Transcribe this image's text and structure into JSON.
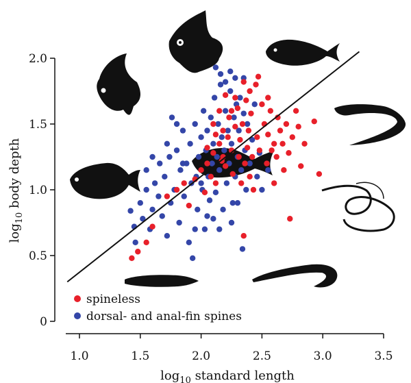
{
  "chart_data": {
    "type": "scatter",
    "xlabel": {
      "prefix": "log",
      "sub": "10",
      "rest": " standard length"
    },
    "ylabel": {
      "prefix": "log",
      "sub": "10",
      "rest": " body depth"
    },
    "xlim": [
      0.9,
      3.5
    ],
    "ylim": [
      0,
      2.0
    ],
    "xticks": [
      "1.0",
      "1.5",
      "2.0",
      "2.5",
      "3.0",
      "3.5"
    ],
    "yticks": [
      "0",
      "0.5",
      "1.0",
      "1.5",
      "2.0"
    ],
    "grid": false,
    "legend_position": "bottom-left",
    "fit_line": {
      "x": [
        0.9,
        3.3
      ],
      "y": [
        0.3,
        2.05
      ]
    },
    "series": [
      {
        "name": "spineless",
        "color": "#e8202a",
        "points": [
          [
            1.43,
            0.48
          ],
          [
            1.48,
            0.53
          ],
          [
            1.55,
            0.6
          ],
          [
            1.6,
            0.72
          ],
          [
            1.72,
            0.95
          ],
          [
            1.8,
            1.0
          ],
          [
            1.86,
            1.05
          ],
          [
            1.9,
            0.88
          ],
          [
            1.95,
            1.08
          ],
          [
            2.0,
            1.15
          ],
          [
            2.03,
            0.98
          ],
          [
            2.05,
            1.2
          ],
          [
            2.08,
            1.1
          ],
          [
            2.1,
            1.28
          ],
          [
            2.12,
            1.05
          ],
          [
            2.15,
            1.35
          ],
          [
            2.17,
            1.22
          ],
          [
            2.18,
            1.45
          ],
          [
            2.2,
            1.18
          ],
          [
            2.22,
            1.4
          ],
          [
            2.23,
            1.55
          ],
          [
            2.25,
            1.3
          ],
          [
            2.26,
            1.12
          ],
          [
            2.28,
            1.48
          ],
          [
            2.3,
            1.62
          ],
          [
            2.31,
            1.25
          ],
          [
            2.32,
            1.38
          ],
          [
            2.33,
            1.05
          ],
          [
            2.34,
            1.5
          ],
          [
            2.35,
            0.65
          ],
          [
            2.36,
            1.2
          ],
          [
            2.37,
            1.68
          ],
          [
            2.38,
            1.32
          ],
          [
            2.39,
            1.45
          ],
          [
            2.4,
            1.1
          ],
          [
            2.41,
            1.58
          ],
          [
            2.42,
            1.25
          ],
          [
            2.43,
            1.0
          ],
          [
            2.45,
            1.8
          ],
          [
            2.46,
            1.4
          ],
          [
            2.47,
            1.86
          ],
          [
            2.48,
            1.3
          ],
          [
            2.5,
            1.65
          ],
          [
            2.52,
            1.5
          ],
          [
            2.54,
            1.2
          ],
          [
            2.55,
            1.42
          ],
          [
            2.57,
            1.6
          ],
          [
            2.58,
            1.3
          ],
          [
            2.6,
            1.05
          ],
          [
            2.62,
            1.25
          ],
          [
            2.63,
            1.55
          ],
          [
            2.65,
            1.45
          ],
          [
            2.67,
            1.35
          ],
          [
            2.68,
            1.15
          ],
          [
            2.7,
            1.5
          ],
          [
            2.72,
            1.28
          ],
          [
            2.73,
            0.78
          ],
          [
            2.75,
            1.4
          ],
          [
            2.78,
            1.6
          ],
          [
            2.8,
            1.48
          ],
          [
            2.82,
            1.18
          ],
          [
            2.85,
            1.35
          ],
          [
            2.93,
            1.52
          ],
          [
            2.97,
            1.12
          ],
          [
            2.2,
            1.72
          ],
          [
            2.28,
            1.7
          ],
          [
            2.15,
            1.6
          ],
          [
            2.1,
            1.5
          ],
          [
            2.4,
            1.75
          ],
          [
            2.35,
            1.82
          ],
          [
            2.55,
            1.7
          ],
          [
            2.6,
            1.35
          ],
          [
            2.05,
            1.32
          ],
          [
            2.12,
            1.42
          ],
          [
            2.18,
            1.25
          ],
          [
            2.25,
            1.6
          ]
        ]
      },
      {
        "name": "dorsal- and anal-fin spines",
        "color": "#3446a8",
        "points": [
          [
            1.42,
            0.84
          ],
          [
            1.45,
            0.72
          ],
          [
            1.46,
            0.6
          ],
          [
            1.5,
            0.9
          ],
          [
            1.52,
            0.78
          ],
          [
            1.55,
            1.0
          ],
          [
            1.58,
            0.7
          ],
          [
            1.6,
            0.85
          ],
          [
            1.62,
            1.05
          ],
          [
            1.65,
            0.95
          ],
          [
            1.66,
            1.2
          ],
          [
            1.68,
            0.8
          ],
          [
            1.7,
            1.1
          ],
          [
            1.72,
            0.65
          ],
          [
            1.74,
            1.25
          ],
          [
            1.75,
            0.9
          ],
          [
            1.76,
            1.55
          ],
          [
            1.78,
            1.0
          ],
          [
            1.8,
            1.3
          ],
          [
            1.82,
            0.75
          ],
          [
            1.83,
            1.15
          ],
          [
            1.85,
            1.45
          ],
          [
            1.86,
            0.95
          ],
          [
            1.88,
            1.2
          ],
          [
            1.9,
            0.6
          ],
          [
            1.91,
            1.35
          ],
          [
            1.92,
            1.05
          ],
          [
            1.93,
            0.48
          ],
          [
            1.95,
            1.5
          ],
          [
            1.96,
            1.1
          ],
          [
            1.97,
            0.85
          ],
          [
            1.98,
            1.25
          ],
          [
            2.0,
            1.4
          ],
          [
            2.01,
            1.0
          ],
          [
            2.02,
            1.6
          ],
          [
            2.03,
            0.7
          ],
          [
            2.04,
            1.3
          ],
          [
            2.05,
            1.45
          ],
          [
            2.06,
            1.1
          ],
          [
            2.07,
            0.92
          ],
          [
            2.08,
            1.55
          ],
          [
            2.09,
            1.2
          ],
          [
            2.1,
            1.35
          ],
          [
            2.11,
            1.7
          ],
          [
            2.12,
            0.98
          ],
          [
            2.13,
            1.25
          ],
          [
            2.14,
            1.5
          ],
          [
            2.15,
            1.15
          ],
          [
            2.16,
            1.8
          ],
          [
            2.17,
            1.4
          ],
          [
            2.18,
            0.85
          ],
          [
            2.19,
            1.3
          ],
          [
            2.2,
            1.6
          ],
          [
            2.21,
            1.05
          ],
          [
            2.22,
            1.45
          ],
          [
            2.23,
            1.2
          ],
          [
            2.24,
            1.75
          ],
          [
            2.25,
            1.35
          ],
          [
            2.26,
            0.9
          ],
          [
            2.27,
            1.55
          ],
          [
            2.28,
            1.1
          ],
          [
            2.29,
            1.65
          ],
          [
            2.3,
            1.25
          ],
          [
            2.31,
            1.45
          ],
          [
            2.32,
            1.7
          ],
          [
            2.33,
            1.15
          ],
          [
            2.34,
            0.55
          ],
          [
            2.35,
            1.58
          ],
          [
            2.36,
            1.3
          ],
          [
            2.37,
            1.0
          ],
          [
            2.38,
            1.5
          ],
          [
            2.4,
            1.2
          ],
          [
            2.42,
            1.38
          ],
          [
            2.44,
            1.65
          ],
          [
            2.46,
            1.1
          ],
          [
            2.48,
            1.28
          ],
          [
            2.5,
            1.0
          ],
          [
            2.55,
            1.15
          ],
          [
            2.12,
            1.93
          ],
          [
            2.16,
            1.88
          ],
          [
            2.2,
            1.82
          ],
          [
            1.72,
            1.35
          ],
          [
            1.8,
            1.5
          ],
          [
            1.85,
            1.2
          ],
          [
            2.0,
            1.05
          ],
          [
            2.05,
            0.8
          ],
          [
            1.95,
            0.7
          ],
          [
            2.1,
            0.78
          ],
          [
            2.15,
            0.7
          ],
          [
            2.25,
            0.75
          ],
          [
            1.6,
            1.25
          ],
          [
            1.55,
            1.15
          ],
          [
            2.3,
            0.9
          ],
          [
            2.35,
            1.85
          ],
          [
            2.28,
            1.85
          ],
          [
            2.24,
            1.9
          ]
        ]
      }
    ]
  }
}
